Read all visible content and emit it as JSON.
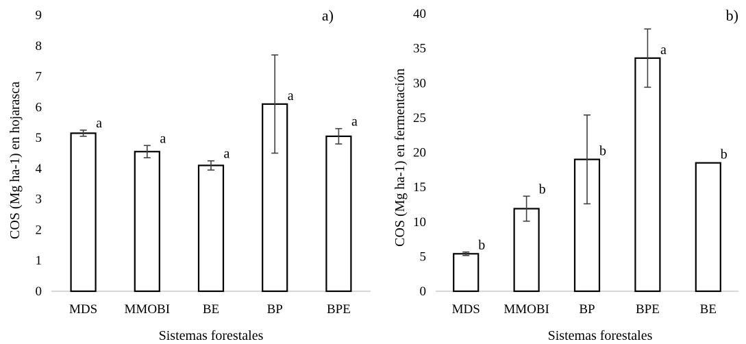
{
  "chart_data": [
    {
      "type": "bar",
      "panel_label": "a)",
      "categories": [
        "MDS",
        "MMOBI",
        "BE",
        "BP",
        "BPE"
      ],
      "values": [
        5.15,
        4.55,
        4.1,
        6.1,
        5.05
      ],
      "errors": [
        0.1,
        0.2,
        0.15,
        1.6,
        0.25
      ],
      "significance": [
        "a",
        "a",
        "a",
        "a",
        "a"
      ],
      "xlabel": "Sistemas forestales",
      "ylabel": "COS (Mg ha-1) en hojarasca",
      "ylim": [
        0,
        9
      ],
      "yticks": [
        "0",
        "1",
        "2",
        "3",
        "4",
        "5",
        "6",
        "7",
        "8",
        "9"
      ],
      "grid": false,
      "legend": "none"
    },
    {
      "type": "bar",
      "panel_label": "b)",
      "categories": [
        "MDS",
        "MMOBI",
        "BP",
        "BPE",
        "BE"
      ],
      "values": [
        5.4,
        11.9,
        19.0,
        33.6,
        18.5
      ],
      "errors": [
        0.25,
        1.8,
        6.4,
        4.2,
        0
      ],
      "significance": [
        "b",
        "b",
        "b",
        "a",
        "b"
      ],
      "xlabel": "Sistemas forestales",
      "ylabel": "COS (Mg ha-1) en fermentación",
      "ylim": [
        0,
        40
      ],
      "yticks": [
        "0",
        "5",
        "10",
        "15",
        "20",
        "25",
        "30",
        "35",
        "40"
      ],
      "grid": false,
      "legend": "none"
    }
  ]
}
